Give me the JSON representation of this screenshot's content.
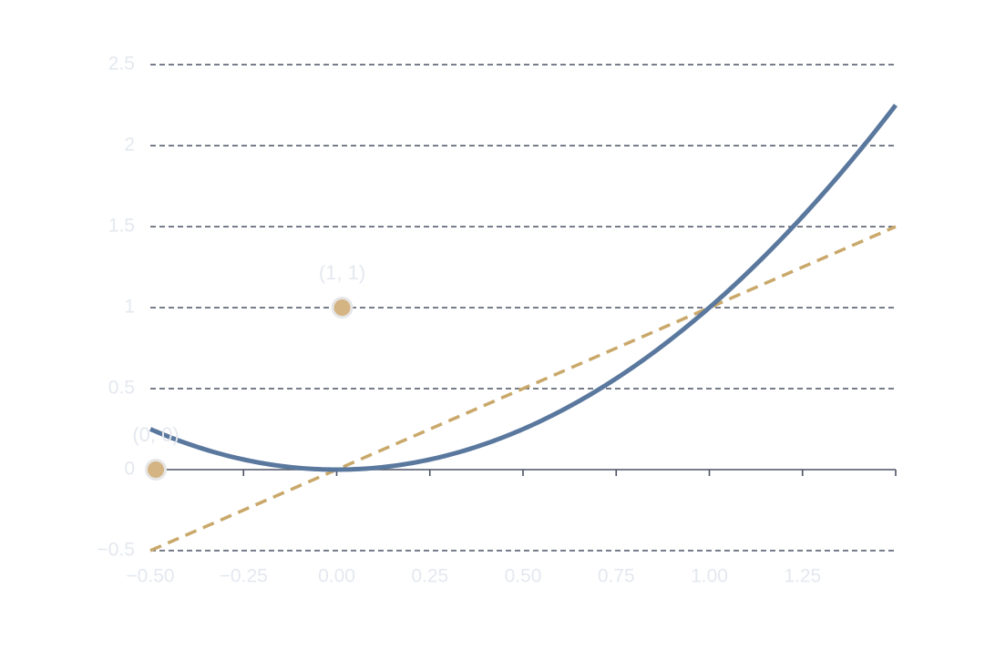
{
  "chart_data": {
    "type": "line",
    "title": "",
    "xlabel": "",
    "ylabel": "",
    "xlim": [
      -0.5,
      1.5
    ],
    "ylim": [
      -0.5,
      2.5
    ],
    "x_ticks": [
      -0.5,
      -0.25,
      0,
      0.25,
      0.5,
      0.75,
      1,
      1.25,
      1.5
    ],
    "x_tick_labels": [
      "−0.50",
      "−0.25",
      "0.00",
      "0.25",
      "0.50",
      "0.75",
      "1.00",
      "1.25",
      ""
    ],
    "y_ticks": [
      -0.5,
      0,
      0.5,
      1,
      1.5,
      2,
      2.5
    ],
    "y_tick_labels": [
      "−0.5",
      "0",
      "0.5",
      "1",
      "1.5",
      "2",
      "2.5"
    ],
    "grid": "horizontal dashed",
    "series": [
      {
        "style": "solid",
        "color": "#5a789e",
        "x": [
          -0.5,
          -0.4,
          -0.3,
          -0.2,
          -0.1,
          0,
          0.1,
          0.2,
          0.3,
          0.4,
          0.5,
          0.6,
          0.7,
          0.8,
          0.9,
          1,
          1.1,
          1.2,
          1.3,
          1.4,
          1.5
        ],
        "values": [
          0.25,
          0.16,
          0.09,
          0.04,
          0.01,
          0,
          0.01,
          0.04,
          0.09,
          0.16,
          0.25,
          0.36,
          0.49,
          0.64,
          0.81,
          1,
          1.21,
          1.44,
          1.69,
          1.96,
          2.25
        ]
      },
      {
        "style": "dashed",
        "color": "#c9a86a",
        "x": [
          -0.5,
          1.5
        ],
        "values": [
          -0.5,
          1.5
        ]
      }
    ],
    "points": [
      {
        "x": -0.5,
        "y": 0,
        "label": "(0, 0)",
        "color": "#d4b483"
      },
      {
        "x": 0,
        "y": 1,
        "label": "(1, 1)",
        "color": "#d4b483"
      }
    ]
  }
}
